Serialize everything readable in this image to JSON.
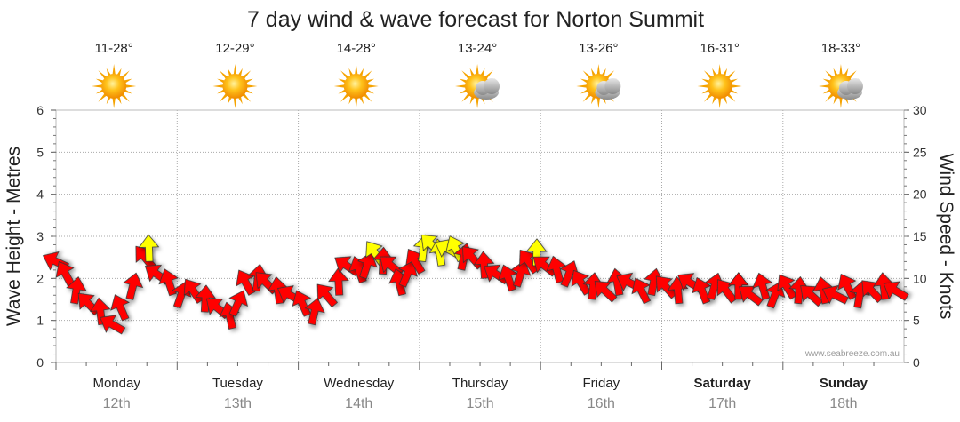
{
  "chart_data": {
    "type": "line",
    "title": "7 day wind & wave forecast for Norton Summit",
    "y_left_label": "Wave Height - Metres",
    "y_right_label": "Wind Speed - Knots",
    "y_left_range": [
      0,
      6
    ],
    "y_right_range": [
      0,
      30
    ],
    "y_left_ticks": [
      "0",
      "1",
      "2",
      "3",
      "4",
      "5",
      "6"
    ],
    "y_right_ticks": [
      "0",
      "5",
      "10",
      "15",
      "20",
      "25",
      "30"
    ],
    "credit": "www.seabreeze.com.au",
    "grid": true,
    "days": [
      {
        "name": "Monday",
        "date": "12th",
        "temp": "11-28°",
        "icon": "sun-icon",
        "bold": false
      },
      {
        "name": "Tuesday",
        "date": "13th",
        "temp": "12-29°",
        "icon": "sun-icon",
        "bold": false
      },
      {
        "name": "Wednesday",
        "date": "14th",
        "temp": "14-28°",
        "icon": "sun-icon",
        "bold": false
      },
      {
        "name": "Thursday",
        "date": "15th",
        "temp": "13-24°",
        "icon": "partly-cloudy-icon",
        "bold": false
      },
      {
        "name": "Friday",
        "date": "16th",
        "temp": "13-26°",
        "icon": "partly-cloudy-icon",
        "bold": false
      },
      {
        "name": "Saturday",
        "date": "17th",
        "temp": "16-31°",
        "icon": "sun-icon",
        "bold": true
      },
      {
        "name": "Sunday",
        "date": "18th",
        "temp": "18-33°",
        "icon": "partly-cloudy-icon",
        "bold": true
      }
    ],
    "series": [
      {
        "name": "Wind Speed",
        "unit": "knots",
        "color_normal": "#ff0000",
        "color_strong": "#ffff00",
        "strong_threshold": 13,
        "points": [
          [
            0.0,
            12.0
          ],
          [
            0.12,
            10.5
          ],
          [
            0.25,
            8.5
          ],
          [
            0.4,
            7.0
          ],
          [
            0.55,
            6.0
          ],
          [
            0.7,
            4.5
          ],
          [
            0.8,
            6.5
          ],
          [
            0.95,
            9.0
          ],
          [
            1.1,
            12.5
          ],
          [
            1.15,
            13.5
          ],
          [
            1.25,
            10.5
          ],
          [
            1.4,
            9.5
          ],
          [
            1.55,
            8.0
          ],
          [
            1.7,
            8.5
          ],
          [
            1.85,
            7.5
          ],
          [
            2.0,
            6.5
          ],
          [
            2.15,
            5.5
          ],
          [
            2.25,
            7.0
          ],
          [
            2.35,
            9.5
          ],
          [
            2.5,
            10.0
          ],
          [
            2.6,
            9.5
          ],
          [
            2.75,
            8.5
          ],
          [
            2.9,
            8.0
          ],
          [
            3.05,
            7.0
          ],
          [
            3.2,
            6.0
          ],
          [
            3.35,
            8.0
          ],
          [
            3.5,
            9.5
          ],
          [
            3.6,
            11.5
          ],
          [
            3.75,
            11.0
          ],
          [
            3.85,
            11.5
          ],
          [
            3.95,
            13.0
          ],
          [
            4.05,
            12.0
          ],
          [
            4.15,
            11.5
          ],
          [
            4.25,
            9.5
          ],
          [
            4.35,
            10.5
          ],
          [
            4.45,
            12.0
          ],
          [
            4.55,
            13.5
          ],
          [
            4.65,
            14.0
          ],
          [
            4.75,
            13.0
          ],
          [
            4.85,
            13.5
          ],
          [
            4.95,
            13.5
          ],
          [
            5.05,
            12.5
          ],
          [
            5.15,
            12.5
          ],
          [
            5.3,
            11.5
          ],
          [
            5.45,
            10.5
          ],
          [
            5.6,
            10.0
          ],
          [
            5.75,
            10.5
          ],
          [
            5.85,
            12.0
          ],
          [
            5.95,
            13.0
          ],
          [
            6.05,
            11.5
          ],
          [
            6.2,
            11.0
          ],
          [
            6.35,
            10.5
          ],
          [
            6.5,
            9.5
          ],
          [
            6.65,
            9.0
          ],
          [
            6.8,
            8.5
          ],
          [
            6.95,
            9.5
          ],
          [
            7.1,
            9.5
          ],
          [
            7.25,
            8.5
          ],
          [
            7.4,
            9.5
          ],
          [
            7.55,
            9.0
          ],
          [
            7.7,
            8.5
          ],
          [
            7.85,
            9.5
          ],
          [
            8.0,
            8.5
          ],
          [
            8.15,
            9.0
          ],
          [
            8.3,
            8.5
          ],
          [
            8.45,
            9.0
          ],
          [
            8.6,
            8.0
          ],
          [
            8.75,
            9.0
          ],
          [
            8.9,
            8.0
          ],
          [
            9.05,
            9.0
          ],
          [
            9.2,
            8.5
          ],
          [
            9.35,
            8.0
          ],
          [
            9.5,
            8.5
          ],
          [
            9.65,
            8.0
          ],
          [
            9.8,
            9.0
          ],
          [
            9.95,
            8.0
          ],
          [
            10.1,
            8.5
          ],
          [
            10.25,
            9.0
          ],
          [
            10.4,
            8.5
          ]
        ]
      }
    ]
  }
}
